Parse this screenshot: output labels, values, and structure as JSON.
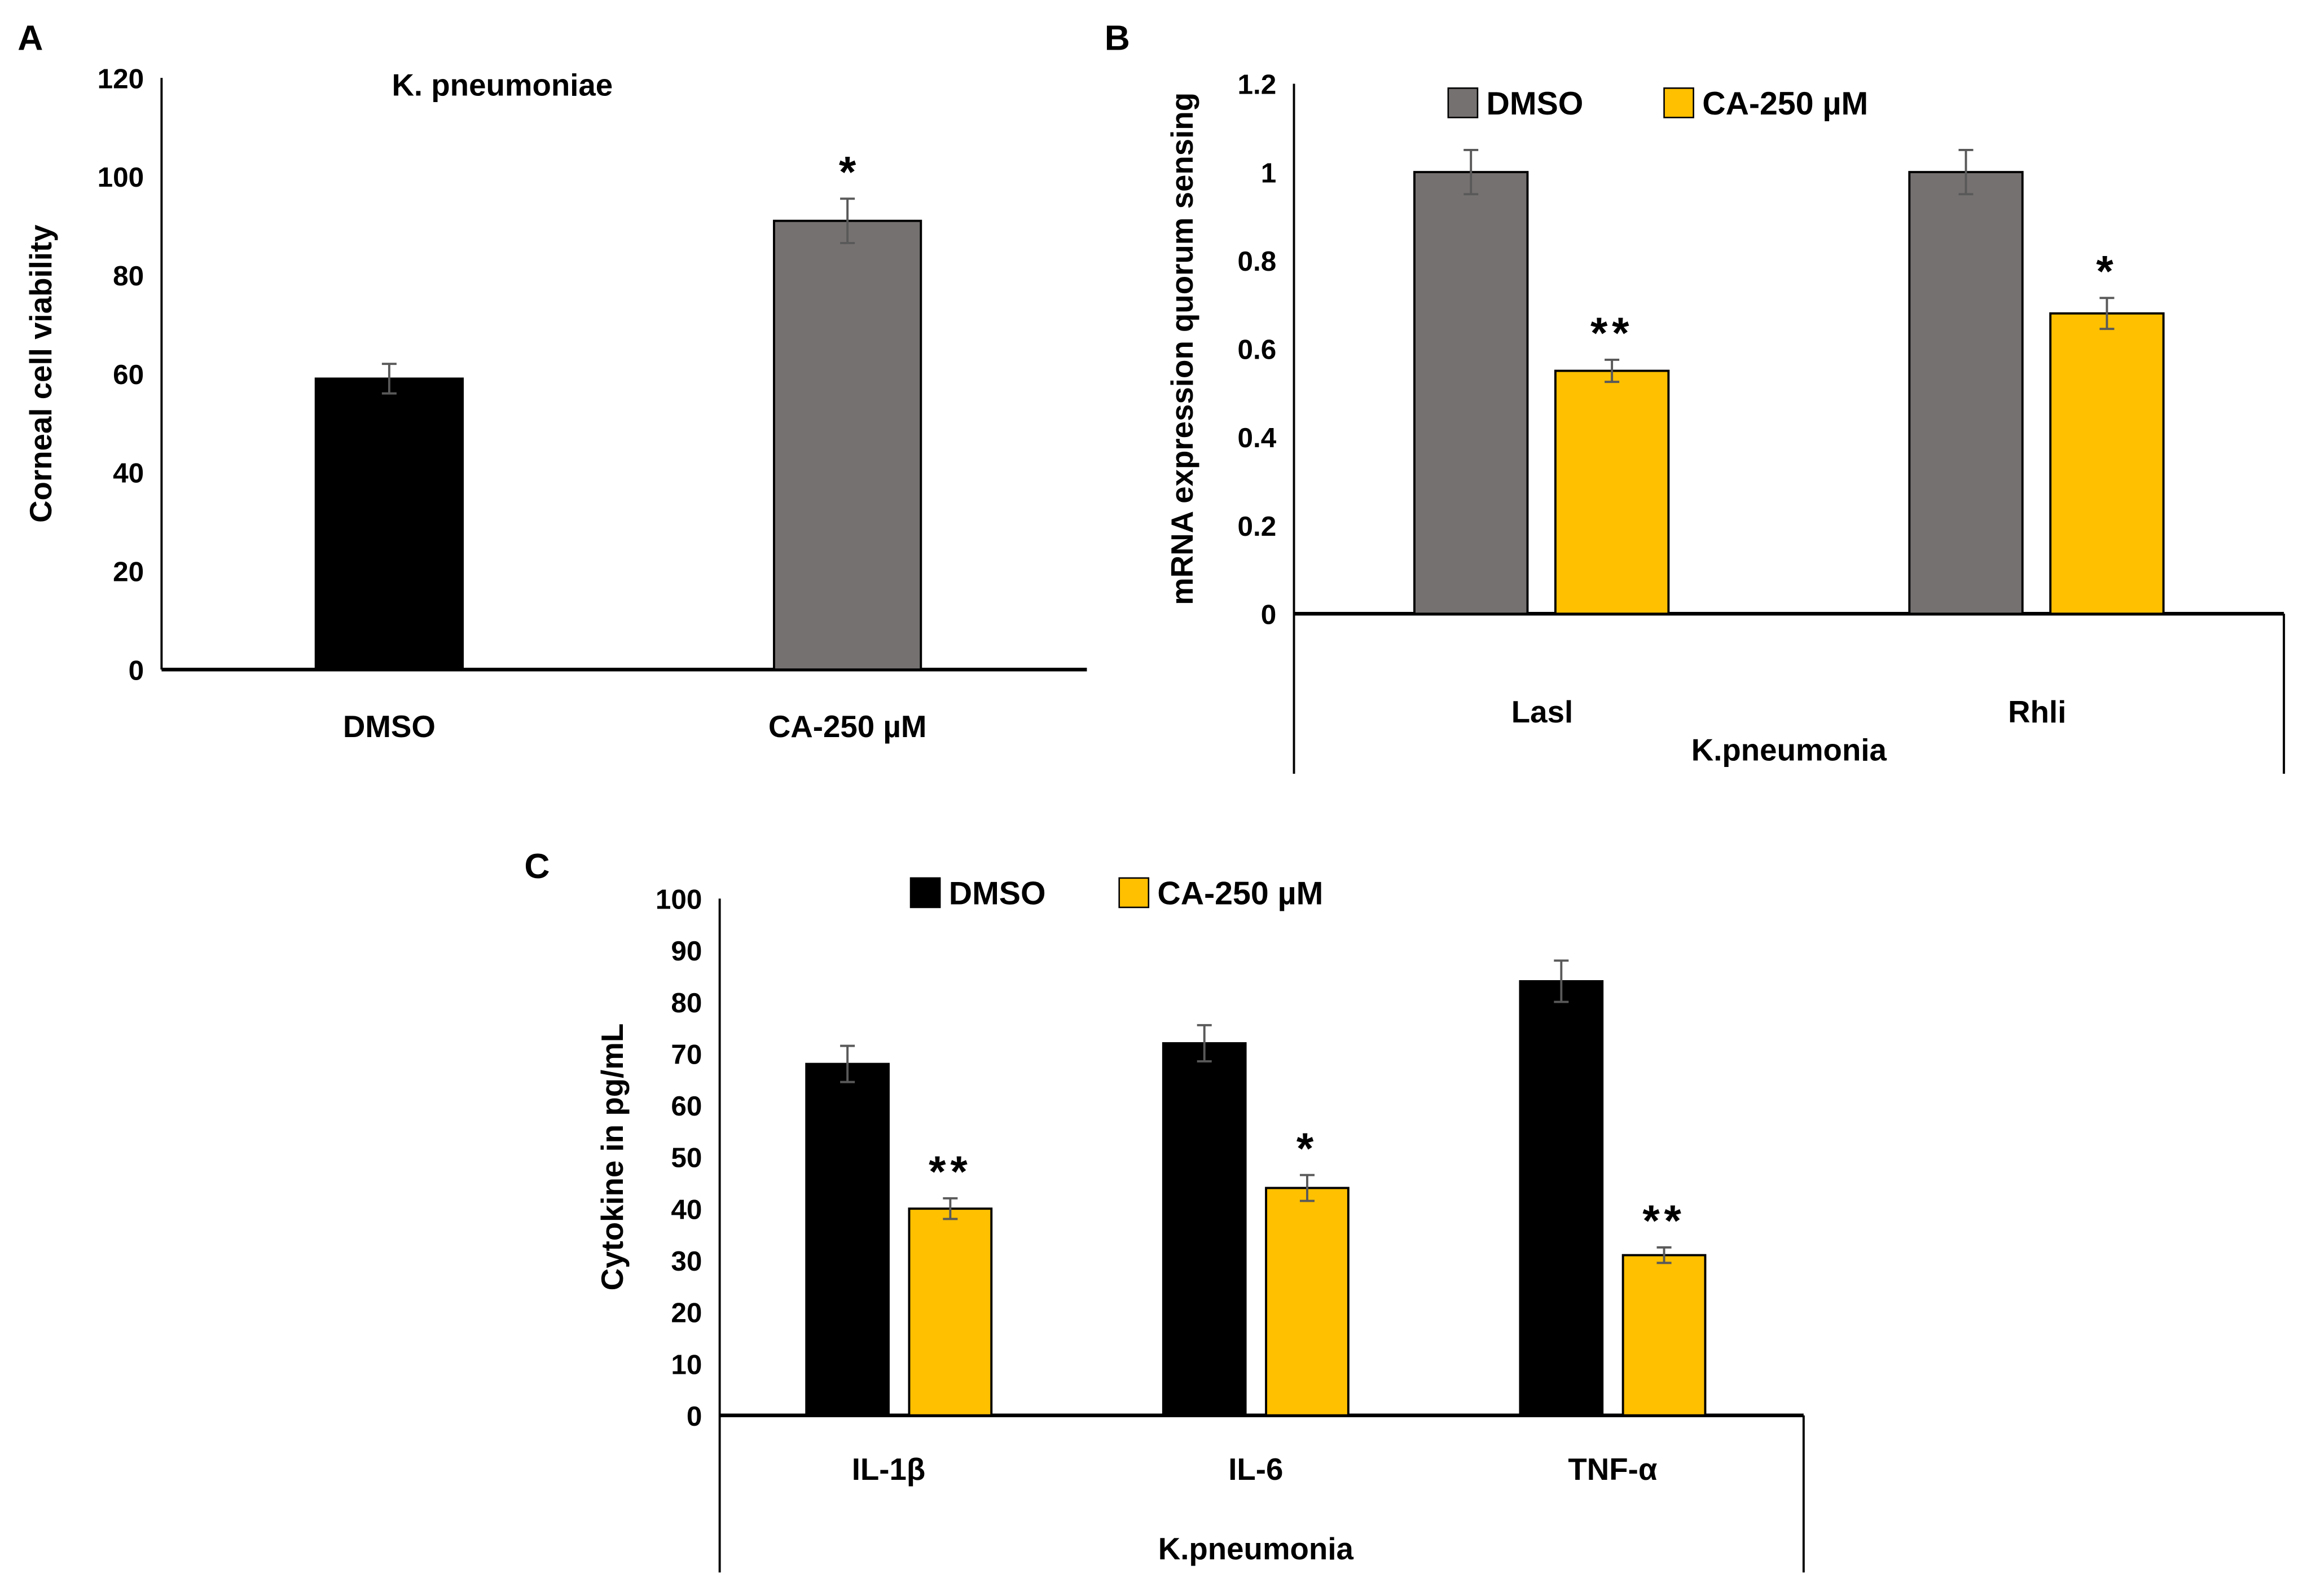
{
  "colors": {
    "black": "#000000",
    "gray": "#767171",
    "yellow": "#FFC000",
    "error": "#595959"
  },
  "chart_data": [
    {
      "panel": "A",
      "type": "bar",
      "title": "K. pneumoniae",
      "ylabel": "Corneal cell viability",
      "xlabel": "",
      "ylim": [
        0,
        120
      ],
      "yticks": [
        0,
        20,
        40,
        60,
        80,
        100,
        120
      ],
      "categories": [
        "DMSO",
        "CA-250 µM"
      ],
      "values": [
        59,
        91
      ],
      "errors": [
        3,
        4.5
      ],
      "bar_colors": [
        "black",
        "gray"
      ],
      "significance": [
        "",
        "*"
      ]
    },
    {
      "panel": "B",
      "type": "bar",
      "ylabel": "mRNA expression quorum sensing",
      "xlabel": "K.pneumonia",
      "ylim": [
        0,
        1.2
      ],
      "yticks": [
        "0",
        "0.2",
        "0.4",
        "0.6",
        "0.8",
        "1",
        "1.2"
      ],
      "legend_position": "top",
      "categories": [
        "Lasl",
        "Rhli"
      ],
      "series": [
        {
          "name": "DMSO",
          "color": "gray",
          "values": [
            1,
            1
          ],
          "errors": [
            0.05,
            0.05
          ],
          "significance": [
            "",
            ""
          ]
        },
        {
          "name": "CA-250 µM",
          "color": "yellow",
          "values": [
            0.55,
            0.68
          ],
          "errors": [
            0.025,
            0.035
          ],
          "significance": [
            "**",
            "*"
          ]
        }
      ]
    },
    {
      "panel": "C",
      "type": "bar",
      "ylabel": "Cytokine in pg/mL",
      "xlabel": "K.pneumonia",
      "ylim": [
        0,
        100
      ],
      "yticks": [
        0,
        10,
        20,
        30,
        40,
        50,
        60,
        70,
        80,
        90,
        100
      ],
      "legend_position": "top",
      "categories": [
        "IL-1β",
        "IL-6",
        "TNF-α"
      ],
      "series": [
        {
          "name": "DMSO",
          "color": "black",
          "values": [
            68,
            72,
            84
          ],
          "errors": [
            3.5,
            3.5,
            4
          ],
          "significance": [
            "",
            "",
            ""
          ]
        },
        {
          "name": "CA-250 µM",
          "color": "yellow",
          "values": [
            40,
            44,
            31
          ],
          "errors": [
            2,
            2.5,
            1.5
          ],
          "significance": [
            "**",
            "*",
            "**"
          ]
        }
      ]
    }
  ]
}
